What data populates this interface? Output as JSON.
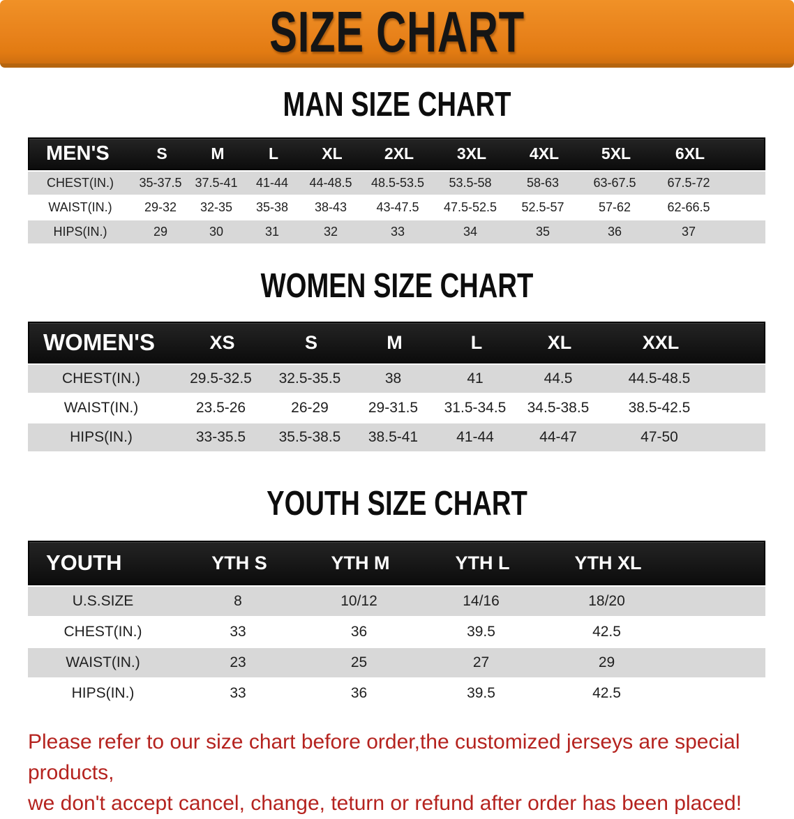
{
  "banner": {
    "title": "SIZE CHART",
    "bg_color": "#e8821b",
    "text_color": "#151515"
  },
  "sections": [
    {
      "heading": "MAN SIZE CHART",
      "table": {
        "label": "MEN'S",
        "columns": [
          "S",
          "M",
          "L",
          "XL",
          "2XL",
          "3XL",
          "4XL",
          "5XL",
          "6XL"
        ],
        "rows": [
          {
            "label": "CHEST(IN.)",
            "values": [
              "35-37.5",
              "37.5-41",
              "41-44",
              "44-48.5",
              "48.5-53.5",
              "53.5-58",
              "58-63",
              "63-67.5",
              "67.5-72"
            ]
          },
          {
            "label": "WAIST(IN.)",
            "values": [
              "29-32",
              "32-35",
              "35-38",
              "38-43",
              "43-47.5",
              "47.5-52.5",
              "52.5-57",
              "57-62",
              "62-66.5"
            ]
          },
          {
            "label": "HIPS(IN.)",
            "values": [
              "29",
              "30",
              "31",
              "32",
              "33",
              "34",
              "35",
              "36",
              "37"
            ]
          }
        ]
      }
    },
    {
      "heading": "WOMEN SIZE CHART",
      "table": {
        "label": "WOMEN'S",
        "columns": [
          "XS",
          "S",
          "M",
          "L",
          "XL",
          "XXL"
        ],
        "rows": [
          {
            "label": "CHEST(IN.)",
            "values": [
              "29.5-32.5",
              "32.5-35.5",
              "38",
              "41",
              "44.5",
              "44.5-48.5"
            ]
          },
          {
            "label": "WAIST(IN.)",
            "values": [
              "23.5-26",
              "26-29",
              "29-31.5",
              "31.5-34.5",
              "34.5-38.5",
              "38.5-42.5"
            ]
          },
          {
            "label": "HIPS(IN.)",
            "values": [
              "33-35.5",
              "35.5-38.5",
              "38.5-41",
              "41-44",
              "44-47",
              "47-50"
            ]
          }
        ]
      }
    },
    {
      "heading": "YOUTH SIZE CHART",
      "table": {
        "label": "YOUTH",
        "columns": [
          "YTH S",
          "YTH M",
          "YTH L",
          "YTH XL"
        ],
        "rows": [
          {
            "label": "U.S.SIZE",
            "values": [
              "8",
              "10/12",
              "14/16",
              "18/20"
            ]
          },
          {
            "label": "CHEST(IN.)",
            "values": [
              "33",
              "36",
              "39.5",
              "42.5"
            ]
          },
          {
            "label": "WAIST(IN.)",
            "values": [
              "23",
              "25",
              "27",
              "29"
            ]
          },
          {
            "label": "HIPS(IN.)",
            "values": [
              "33",
              "36",
              "39.5",
              "42.5"
            ]
          }
        ]
      }
    }
  ],
  "notice": {
    "color": "#b5231f",
    "lines": [
      "Please refer to our size chart before order,the customized jerseys are special products,",
      "we don't accept cancel, change, teturn or refund after order has been placed!"
    ]
  },
  "colors": {
    "banner_orange": "#e8821b",
    "banner_edge": "#b5650f",
    "header_black": "#131313",
    "stripe_gray": "#d8d8d8",
    "text_dark": "#1f1f1f",
    "notice_red": "#b5231f"
  }
}
